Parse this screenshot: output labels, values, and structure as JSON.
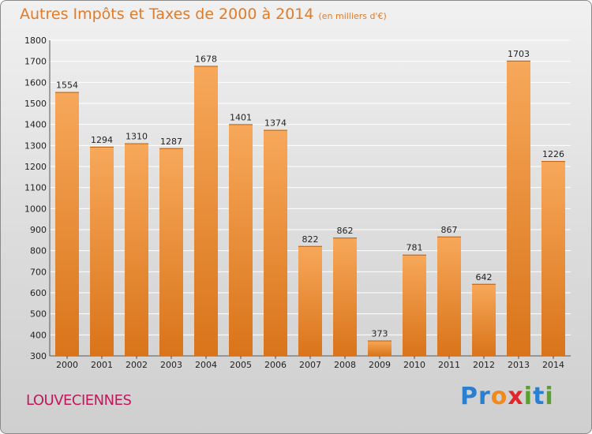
{
  "header": {
    "title": "Autres Impôts et Taxes de 2000 à 2014",
    "unit": "(en milliers d'€)"
  },
  "footer": {
    "commune": "LOUVECIENNES",
    "brand_letters": [
      "P",
      "r",
      "o",
      "x",
      "i",
      "t",
      "i"
    ],
    "brand_colors": [
      "#2b7fd1",
      "#2b7fd1",
      "#f08a1c",
      "#e0262c",
      "#5aa02c",
      "#2b7fd1",
      "#5aa02c"
    ]
  },
  "colors": {
    "bar_top": "#f7a85a",
    "bar_bottom": "#d9741a",
    "title": "#e07b2a",
    "commune": "#c2185b"
  },
  "chart_data": {
    "type": "bar",
    "title": "Autres Impôts et Taxes de 2000 à 2014",
    "xlabel": "",
    "ylabel": "",
    "categories": [
      "2000",
      "2001",
      "2002",
      "2003",
      "2004",
      "2005",
      "2006",
      "2007",
      "2008",
      "2009",
      "2010",
      "2011",
      "2012",
      "2013",
      "2014"
    ],
    "values": [
      1554,
      1294,
      1310,
      1287,
      1678,
      1401,
      1374,
      822,
      862,
      373,
      781,
      867,
      642,
      1703,
      1226
    ],
    "ylim": [
      300,
      1800
    ],
    "yticks": [
      300,
      400,
      500,
      600,
      700,
      800,
      900,
      1000,
      1100,
      1200,
      1300,
      1400,
      1500,
      1600,
      1700,
      1800
    ],
    "grid": true,
    "legend": "none"
  }
}
